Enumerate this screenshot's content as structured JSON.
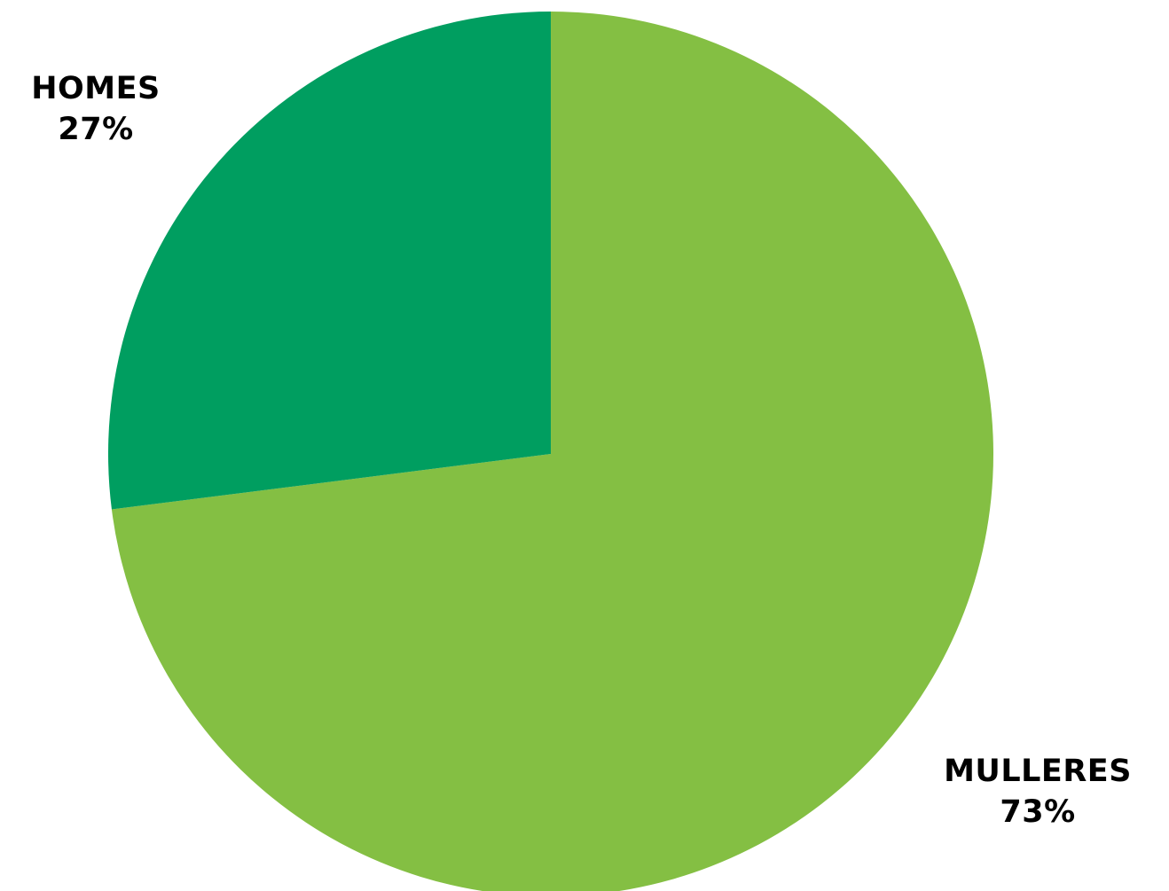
{
  "chart_data": {
    "type": "pie",
    "slices": [
      {
        "label": "MULLERES",
        "value": 73,
        "value_label": "73%",
        "color": "#84bf43"
      },
      {
        "label": "HOMES",
        "value": 27,
        "value_label": "27%",
        "color": "#009e60"
      }
    ],
    "start": "12 o'clock",
    "direction": "clockwise",
    "title": "",
    "legend": "none"
  }
}
